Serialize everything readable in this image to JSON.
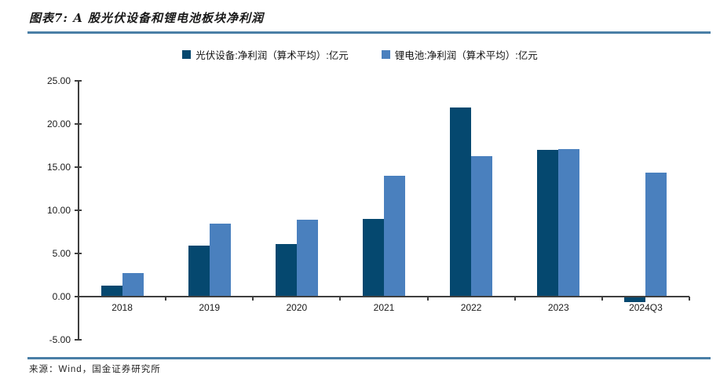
{
  "page": {
    "title": "图表7: A 股光伏设备和锂电池板块净利润",
    "source": "来源：Wind，国金证券研究所",
    "rule_color": "#4A7FA6"
  },
  "chart_data": {
    "type": "bar",
    "title": "A 股光伏设备和锂电池板块净利润",
    "categories": [
      "2018",
      "2019",
      "2020",
      "2021",
      "2022",
      "2023",
      "2024Q3"
    ],
    "series": [
      {
        "name": "光伏设备:净利润（算术平均）:亿元",
        "color": "#05486F",
        "values": [
          1.3,
          5.9,
          6.1,
          9.0,
          21.9,
          17.0,
          -0.5
        ]
      },
      {
        "name": "锂电池:净利润（算术平均）:亿元",
        "color": "#4A80BE",
        "values": [
          2.7,
          8.5,
          8.9,
          14.0,
          16.3,
          17.1,
          14.4
        ]
      }
    ],
    "ylabel": "",
    "xlabel": "",
    "ylim": [
      -5,
      25
    ],
    "ytick_step": 5,
    "ytick_labels": [
      "25.00",
      "20.00",
      "15.00",
      "10.00",
      "5.00",
      "0.00",
      "-5.00"
    ],
    "legend_position": "top",
    "grid": false,
    "axis_color": "#3f3f3f"
  }
}
